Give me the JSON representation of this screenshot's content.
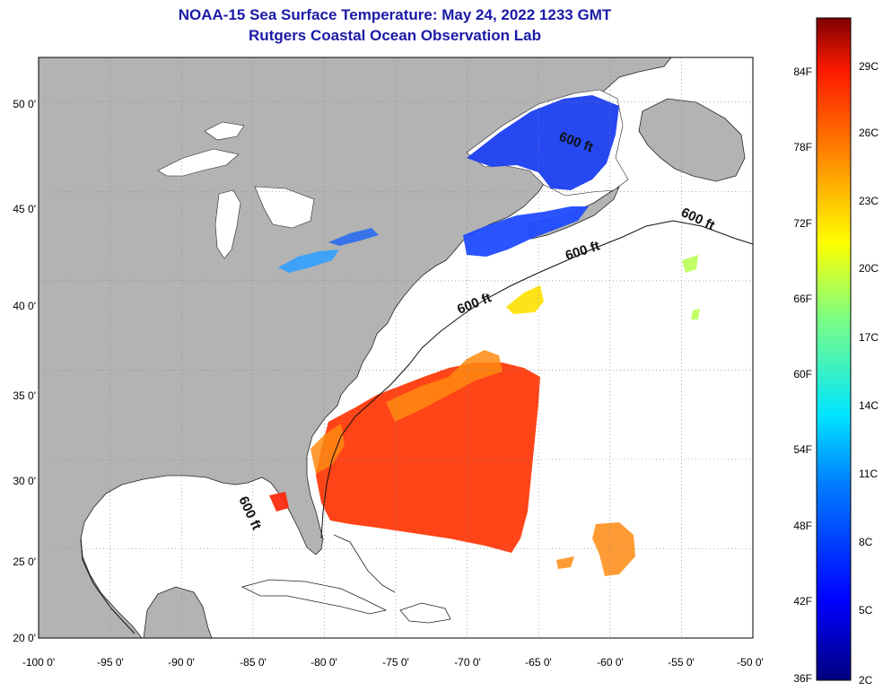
{
  "header": {
    "title": "NOAA-15 Sea Surface Temperature:  May 24, 2022 1233 GMT",
    "subtitle": "Rutgers Coastal Ocean Observation Lab"
  },
  "map": {
    "lat_labels": [
      "50 0'",
      "45 0'",
      "40 0'",
      "35 0'",
      "30 0'",
      "25 0'",
      "20 0'"
    ],
    "lon_labels": [
      "-100 0'",
      "-95 0'",
      "-90 0'",
      "-85 0'",
      "-80 0'",
      "-75 0'",
      "-70 0'",
      "-65 0'",
      "-60 0'",
      "-55 0'",
      "-50 0'"
    ],
    "lon_range": [
      -100,
      -50
    ],
    "lat_range": [
      20,
      52.5
    ],
    "contour_labels": [
      "600 ft",
      "600 ft",
      "600 ft",
      "600 ft",
      "600 ft"
    ],
    "colors": {
      "land": "#b3b3b3",
      "ocean_no_data": "#ffffff",
      "grid": "#888888",
      "title": "#1a1aa6"
    }
  },
  "colorbar": {
    "f_labels": [
      "84F",
      "78F",
      "72F",
      "66F",
      "60F",
      "54F",
      "48F",
      "42F",
      "36F"
    ],
    "c_labels": [
      "29C",
      "26C",
      "23C",
      "20C",
      "17C",
      "14C",
      "11C",
      "8C",
      "5C",
      "2C"
    ],
    "range_c": [
      2,
      31
    ]
  }
}
